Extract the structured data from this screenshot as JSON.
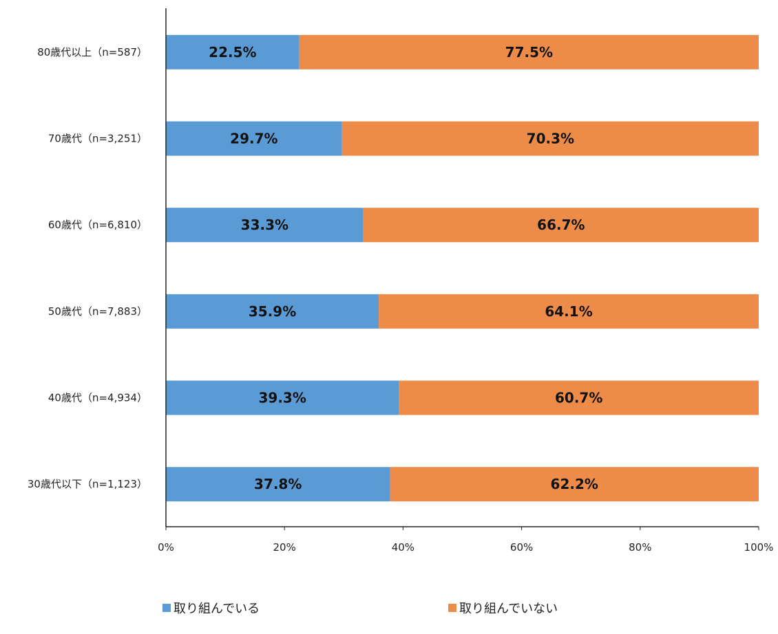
{
  "chart_data": {
    "type": "bar",
    "orientation": "horizontal",
    "stacked": "percent",
    "categories": [
      "80歳代以上（n=587）",
      "70歳代（n=3,251）",
      "60歳代（n=6,810）",
      "50歳代（n=7,883）",
      "40歳代（n=4,934）",
      "30歳代以下（n=1,123）"
    ],
    "series": [
      {
        "name": "取り組んでいる",
        "color": "#5B9BD5",
        "values": [
          22.5,
          29.7,
          33.3,
          35.9,
          39.3,
          37.8
        ],
        "labels": [
          "22.5%",
          "29.7%",
          "33.3%",
          "35.9%",
          "39.3%",
          "37.8%"
        ]
      },
      {
        "name": "取り組んでいない",
        "color": "#ED8B48",
        "values": [
          77.5,
          70.3,
          66.7,
          64.1,
          60.7,
          62.2
        ],
        "labels": [
          "77.5%",
          "70.3%",
          "66.7%",
          "64.1%",
          "60.7%",
          "62.2%"
        ]
      }
    ],
    "xlim": [
      0,
      100
    ],
    "xticks": [
      0,
      20,
      40,
      60,
      80,
      100
    ],
    "xtick_labels": [
      "0%",
      "20%",
      "40%",
      "60%",
      "80%",
      "100%"
    ],
    "grid": false,
    "legend_position": "bottom"
  }
}
